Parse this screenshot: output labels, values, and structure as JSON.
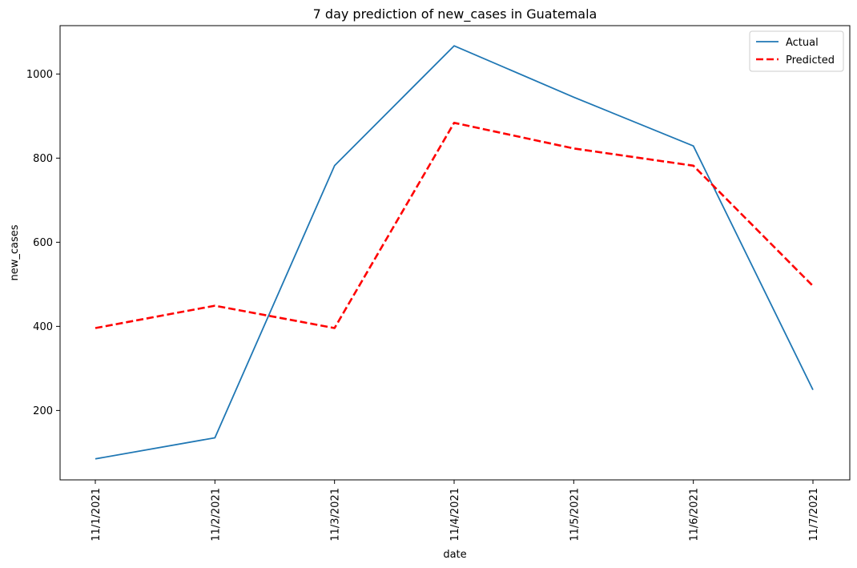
{
  "chart_data": {
    "type": "line",
    "title": "7 day prediction of new_cases in Guatemala",
    "xlabel": "date",
    "ylabel": "new_cases",
    "categories": [
      "11/1/2021",
      "11/2/2021",
      "11/3/2021",
      "11/4/2021",
      "11/5/2021",
      "11/6/2021",
      "11/7/2021"
    ],
    "yticks": [
      200,
      400,
      600,
      800,
      1000
    ],
    "ylim": [
      35,
      1115
    ],
    "grid": false,
    "legend_position": "top-right",
    "series": [
      {
        "name": "Actual",
        "color": "#1f77b4",
        "style": "solid",
        "values": [
          85,
          135,
          782,
          1067,
          945,
          829,
          249
        ]
      },
      {
        "name": "Predicted",
        "color": "#ff0000",
        "style": "dashed",
        "values": [
          396,
          449,
          396,
          884,
          823,
          782,
          496
        ]
      }
    ]
  }
}
